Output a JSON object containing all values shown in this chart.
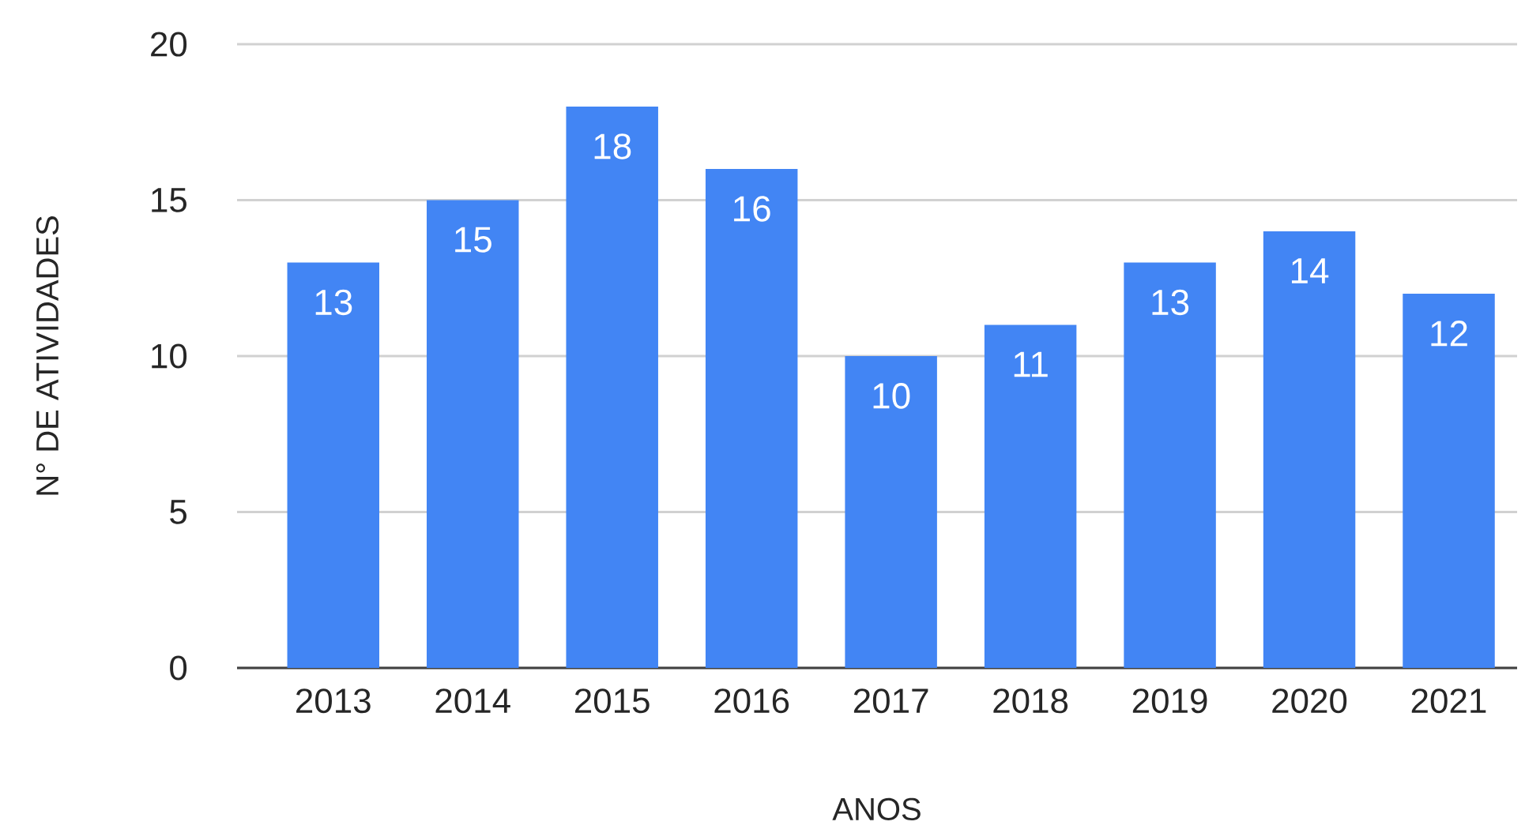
{
  "chart_data": {
    "type": "bar",
    "xlabel": "ANOS",
    "ylabel": "N° DE ATIVIDADES",
    "categories": [
      "2013",
      "2014",
      "2015",
      "2016",
      "2017",
      "2018",
      "2019",
      "2020",
      "2021"
    ],
    "values": [
      13,
      15,
      18,
      16,
      10,
      11,
      13,
      14,
      12
    ],
    "color": "#4285f4",
    "ylim": [
      0,
      20
    ],
    "yticks": [
      0,
      5,
      10,
      15,
      20
    ],
    "grid": "y",
    "data_labels": true
  }
}
